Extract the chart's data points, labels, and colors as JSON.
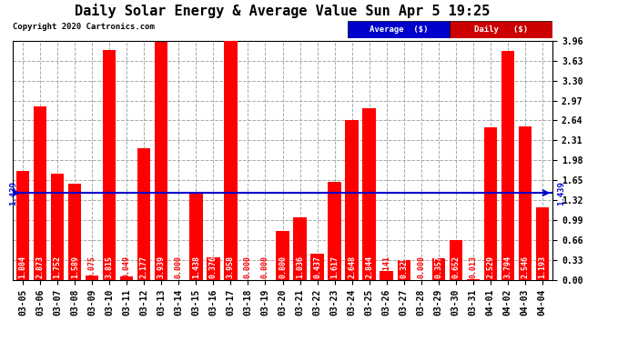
{
  "title": "Daily Solar Energy & Average Value Sun Apr 5 19:25",
  "copyright": "Copyright 2020 Cartronics.com",
  "categories": [
    "03-05",
    "03-06",
    "03-07",
    "03-08",
    "03-09",
    "03-10",
    "03-11",
    "03-12",
    "03-13",
    "03-14",
    "03-15",
    "03-16",
    "03-17",
    "03-18",
    "03-19",
    "03-20",
    "03-21",
    "03-22",
    "03-23",
    "03-24",
    "03-25",
    "03-26",
    "03-27",
    "03-28",
    "03-29",
    "03-30",
    "03-31",
    "04-01",
    "04-02",
    "04-03",
    "04-04"
  ],
  "values": [
    1.804,
    2.873,
    1.752,
    1.589,
    0.075,
    3.815,
    0.049,
    2.177,
    3.939,
    0.0,
    1.438,
    0.376,
    3.958,
    0.0,
    0.0,
    0.8,
    1.036,
    0.437,
    1.617,
    2.648,
    2.844,
    0.141,
    0.325,
    0.0,
    0.357,
    0.652,
    0.013,
    2.529,
    3.794,
    2.546,
    1.193
  ],
  "average": 1.439,
  "ylim": [
    0,
    3.96
  ],
  "yticks": [
    0.0,
    0.33,
    0.66,
    0.99,
    1.32,
    1.65,
    1.98,
    2.31,
    2.64,
    2.97,
    3.3,
    3.63,
    3.96
  ],
  "bar_color": "#ff0000",
  "avg_line_color": "#0000cc",
  "background_color": "#ffffff",
  "plot_bg_color": "#ffffff",
  "grid_color": "#aaaaaa",
  "title_fontsize": 11,
  "tick_fontsize": 7,
  "value_fontsize": 6
}
